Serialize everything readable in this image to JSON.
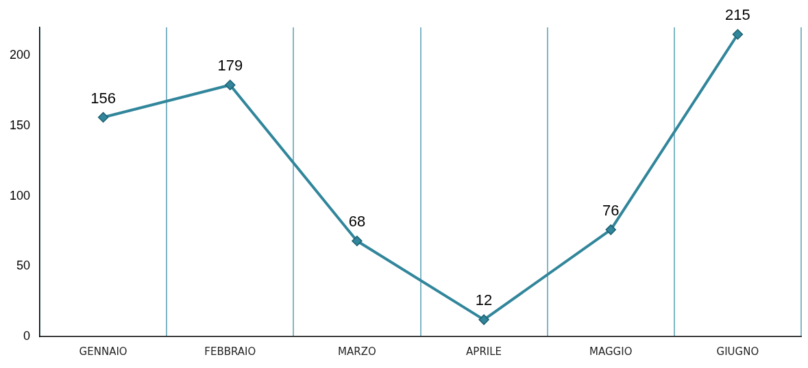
{
  "chart_data": {
    "type": "line",
    "categories": [
      "GENNAIO",
      "FEBBRAIO",
      "MARZO",
      "APRILE",
      "MAGGIO",
      "GIUGNO"
    ],
    "series": [
      {
        "color": "#31869b",
        "values": [
          156,
          179,
          68,
          12,
          76,
          215
        ]
      }
    ],
    "ylim": [
      0,
      220
    ],
    "yticks": [
      0,
      50,
      100,
      150,
      200
    ],
    "grid": "x",
    "marker": "diamond",
    "line_style": "solid",
    "data_labels": true
  }
}
